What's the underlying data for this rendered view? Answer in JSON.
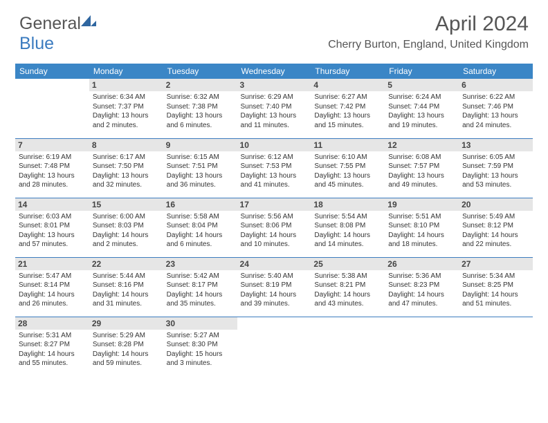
{
  "brand": {
    "name_a": "General",
    "name_b": "Blue"
  },
  "title": "April 2024",
  "location": "Cherry Burton, England, United Kingdom",
  "weekdays": [
    "Sunday",
    "Monday",
    "Tuesday",
    "Wednesday",
    "Thursday",
    "Friday",
    "Saturday"
  ],
  "colors": {
    "header_bg": "#3b86c6",
    "daynum_bg": "#e6e6e6",
    "border": "#3b7bbf",
    "text": "#333333",
    "title_text": "#555555"
  },
  "typography": {
    "title_size": 30,
    "location_size": 16,
    "header_size": 12,
    "daynum_size": 12,
    "body_size": 10
  },
  "grid": {
    "rows": 5,
    "cols": 7,
    "start_offset": 1,
    "days_in_month": 30
  },
  "days": {
    "1": {
      "sunrise": "6:34 AM",
      "sunset": "7:37 PM",
      "daylight": "13 hours and 2 minutes."
    },
    "2": {
      "sunrise": "6:32 AM",
      "sunset": "7:38 PM",
      "daylight": "13 hours and 6 minutes."
    },
    "3": {
      "sunrise": "6:29 AM",
      "sunset": "7:40 PM",
      "daylight": "13 hours and 11 minutes."
    },
    "4": {
      "sunrise": "6:27 AM",
      "sunset": "7:42 PM",
      "daylight": "13 hours and 15 minutes."
    },
    "5": {
      "sunrise": "6:24 AM",
      "sunset": "7:44 PM",
      "daylight": "13 hours and 19 minutes."
    },
    "6": {
      "sunrise": "6:22 AM",
      "sunset": "7:46 PM",
      "daylight": "13 hours and 24 minutes."
    },
    "7": {
      "sunrise": "6:19 AM",
      "sunset": "7:48 PM",
      "daylight": "13 hours and 28 minutes."
    },
    "8": {
      "sunrise": "6:17 AM",
      "sunset": "7:50 PM",
      "daylight": "13 hours and 32 minutes."
    },
    "9": {
      "sunrise": "6:15 AM",
      "sunset": "7:51 PM",
      "daylight": "13 hours and 36 minutes."
    },
    "10": {
      "sunrise": "6:12 AM",
      "sunset": "7:53 PM",
      "daylight": "13 hours and 41 minutes."
    },
    "11": {
      "sunrise": "6:10 AM",
      "sunset": "7:55 PM",
      "daylight": "13 hours and 45 minutes."
    },
    "12": {
      "sunrise": "6:08 AM",
      "sunset": "7:57 PM",
      "daylight": "13 hours and 49 minutes."
    },
    "13": {
      "sunrise": "6:05 AM",
      "sunset": "7:59 PM",
      "daylight": "13 hours and 53 minutes."
    },
    "14": {
      "sunrise": "6:03 AM",
      "sunset": "8:01 PM",
      "daylight": "13 hours and 57 minutes."
    },
    "15": {
      "sunrise": "6:00 AM",
      "sunset": "8:03 PM",
      "daylight": "14 hours and 2 minutes."
    },
    "16": {
      "sunrise": "5:58 AM",
      "sunset": "8:04 PM",
      "daylight": "14 hours and 6 minutes."
    },
    "17": {
      "sunrise": "5:56 AM",
      "sunset": "8:06 PM",
      "daylight": "14 hours and 10 minutes."
    },
    "18": {
      "sunrise": "5:54 AM",
      "sunset": "8:08 PM",
      "daylight": "14 hours and 14 minutes."
    },
    "19": {
      "sunrise": "5:51 AM",
      "sunset": "8:10 PM",
      "daylight": "14 hours and 18 minutes."
    },
    "20": {
      "sunrise": "5:49 AM",
      "sunset": "8:12 PM",
      "daylight": "14 hours and 22 minutes."
    },
    "21": {
      "sunrise": "5:47 AM",
      "sunset": "8:14 PM",
      "daylight": "14 hours and 26 minutes."
    },
    "22": {
      "sunrise": "5:44 AM",
      "sunset": "8:16 PM",
      "daylight": "14 hours and 31 minutes."
    },
    "23": {
      "sunrise": "5:42 AM",
      "sunset": "8:17 PM",
      "daylight": "14 hours and 35 minutes."
    },
    "24": {
      "sunrise": "5:40 AM",
      "sunset": "8:19 PM",
      "daylight": "14 hours and 39 minutes."
    },
    "25": {
      "sunrise": "5:38 AM",
      "sunset": "8:21 PM",
      "daylight": "14 hours and 43 minutes."
    },
    "26": {
      "sunrise": "5:36 AM",
      "sunset": "8:23 PM",
      "daylight": "14 hours and 47 minutes."
    },
    "27": {
      "sunrise": "5:34 AM",
      "sunset": "8:25 PM",
      "daylight": "14 hours and 51 minutes."
    },
    "28": {
      "sunrise": "5:31 AM",
      "sunset": "8:27 PM",
      "daylight": "14 hours and 55 minutes."
    },
    "29": {
      "sunrise": "5:29 AM",
      "sunset": "8:28 PM",
      "daylight": "14 hours and 59 minutes."
    },
    "30": {
      "sunrise": "5:27 AM",
      "sunset": "8:30 PM",
      "daylight": "15 hours and 3 minutes."
    }
  },
  "labels": {
    "sunrise": "Sunrise:",
    "sunset": "Sunset:",
    "daylight": "Daylight:"
  }
}
